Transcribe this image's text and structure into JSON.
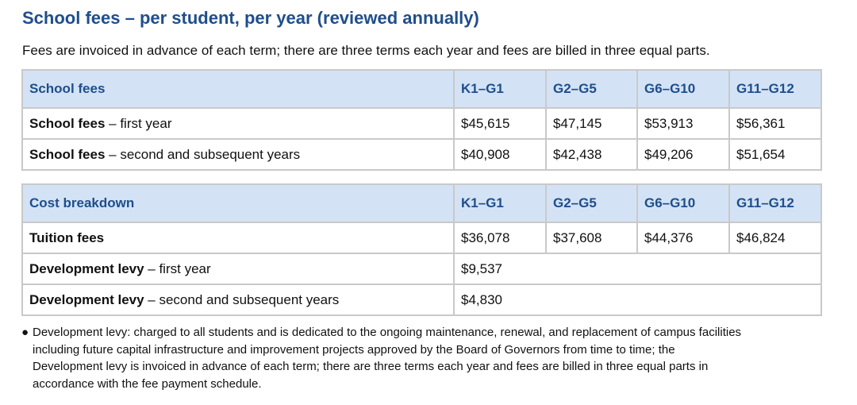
{
  "title": "School fees – per student, per year (reviewed annually)",
  "intro": "Fees are invoiced in advance of each term; there are three terms each year and fees are billed in three equal parts.",
  "school_fees_table": {
    "headers": [
      "School fees",
      "K1–G1",
      "G2–G5",
      "G6–G10",
      "G11–G12"
    ],
    "rows": [
      {
        "label_bold": "School fees",
        "label_rest": " – first year",
        "values": [
          "$45,615",
          "$47,145",
          "$53,913",
          "$56,361"
        ]
      },
      {
        "label_bold": "School fees",
        "label_rest": " – second and subsequent years",
        "values": [
          "$40,908",
          "$42,438",
          "$49,206",
          "$51,654"
        ]
      }
    ]
  },
  "cost_breakdown_table": {
    "headers": [
      "Cost breakdown",
      "K1–G1",
      "G2–G5",
      "G6–G10",
      "G11–G12"
    ],
    "rows": [
      {
        "label_bold": "Tuition fees",
        "label_rest": "",
        "values": [
          "$36,078",
          "$37,608",
          "$44,376",
          "$46,824"
        ]
      },
      {
        "label_bold": "Development levy",
        "label_rest": " – first year",
        "value": "$9,537"
      },
      {
        "label_bold": "Development levy",
        "label_rest": " – second and subsequent years",
        "value": "$4,830"
      }
    ]
  },
  "notes": [
    {
      "bullet": "●",
      "lines": [
        "Development levy: charged to all students and is dedicated to the ongoing maintenance, renewal, and replacement of campus facilities",
        "including future capital infrastructure and improvement projects approved by the Board of Governors from time to time; the",
        "Development levy is invoiced in advance of each term; there are three terms each year and fees are billed in three equal parts in",
        "accordance with the fee payment schedule."
      ]
    }
  ],
  "colors": {
    "accent": "#1f4e8c",
    "header_background": "#d3e3f5",
    "border": "#c9c9c9"
  }
}
